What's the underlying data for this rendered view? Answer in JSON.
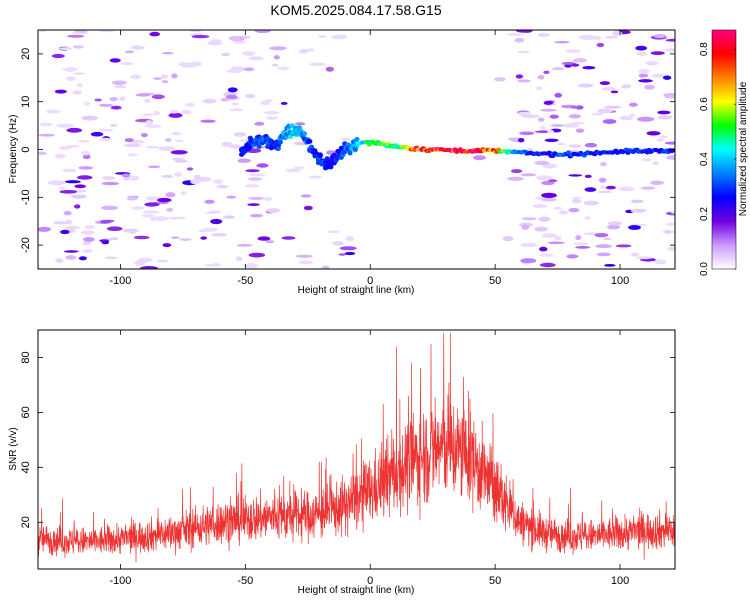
{
  "title": "KOM5.2025.084.17.58.G15",
  "chart_data": [
    {
      "type": "heatmap",
      "xlabel": "Height of straight line (km)",
      "ylabel": "Frequency (Hz)",
      "xlim": [
        -133,
        122
      ],
      "ylim": [
        -25,
        25
      ],
      "x_ticks": [
        -100,
        -50,
        0,
        50,
        100
      ],
      "y_ticks": [
        20,
        10,
        0,
        -10,
        -20
      ],
      "grid": false,
      "colorbar": {
        "label": "Normalized spectral amplitude",
        "range": [
          0,
          0.87
        ],
        "ticks": [
          "0.0",
          "0.2",
          "0.4",
          "0.6",
          "0.8"
        ],
        "colors": [
          "#ffffff",
          "#cc99ff",
          "#7000e0",
          "#0000ff",
          "#0080ff",
          "#00ffff",
          "#00ff00",
          "#ffff00",
          "#ff8000",
          "#ff0000",
          "#ff0080"
        ]
      },
      "ridge": {
        "x": [
          -52,
          -47,
          -42,
          -38,
          -34,
          -31,
          -28,
          -25,
          -22,
          -19,
          -16,
          -13,
          -10,
          -6,
          -2,
          2,
          6,
          12,
          18,
          24,
          30,
          40,
          50,
          58,
          65,
          72,
          80,
          88,
          95,
          105,
          115,
          122
        ],
        "y": [
          -0.5,
          1.5,
          2,
          0.5,
          3.5,
          4,
          3.5,
          1.5,
          -1,
          -2.5,
          -3,
          -1.5,
          0,
          1,
          1.5,
          1.5,
          1,
          0.5,
          0.2,
          0,
          -0.1,
          -0.2,
          -0.3,
          -0.6,
          -0.8,
          -1,
          -1,
          -0.8,
          -0.5,
          -0.4,
          -0.3,
          -0.2
        ],
        "amplitude": [
          0.3,
          0.35,
          0.35,
          0.3,
          0.4,
          0.45,
          0.4,
          0.35,
          0.3,
          0.32,
          0.3,
          0.3,
          0.35,
          0.42,
          0.5,
          0.55,
          0.55,
          0.6,
          0.85,
          0.87,
          0.85,
          0.85,
          0.75,
          0.4,
          0.3,
          0.3,
          0.35,
          0.3,
          0.3,
          0.3,
          0.3,
          0.3
        ]
      }
    },
    {
      "type": "line",
      "xlabel": "Height of straight line (km)",
      "ylabel": "SNR (v/v)",
      "xlim": [
        -133,
        122
      ],
      "ylim": [
        3,
        90
      ],
      "x_ticks": [
        -100,
        -50,
        0,
        50,
        100
      ],
      "y_ticks": [
        20,
        40,
        60,
        80
      ],
      "grid": false,
      "series": [
        {
          "color": "#ee3333",
          "x": [
            -133,
            -120,
            -110,
            -100,
            -90,
            -80,
            -70,
            -60,
            -50,
            -40,
            -30,
            -20,
            -10,
            0,
            10,
            20,
            30,
            40,
            50,
            60,
            70,
            80,
            90,
            100,
            110,
            122
          ],
          "y": [
            14,
            13,
            13,
            14,
            15,
            16,
            18,
            20,
            21,
            22,
            22,
            23,
            26,
            31,
            38,
            44,
            48,
            44,
            32,
            20,
            16,
            15,
            15,
            16,
            17,
            17
          ]
        }
      ]
    }
  ]
}
